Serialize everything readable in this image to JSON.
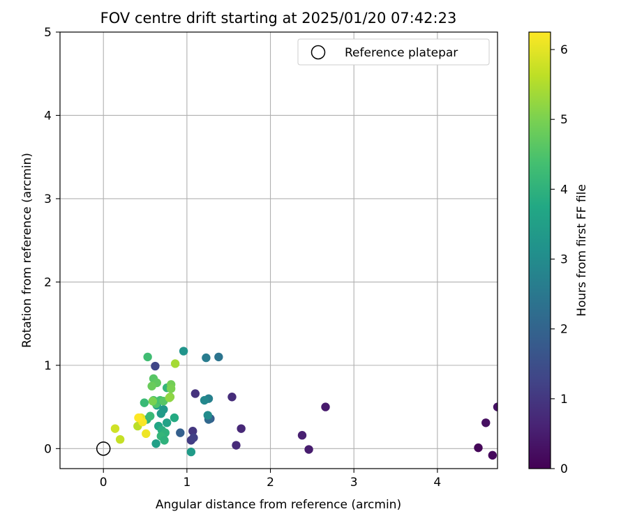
{
  "chart_data": {
    "type": "scatter",
    "title": "FOV centre drift starting at 2025/01/20 07:42:23",
    "xlabel": "Angular distance from reference (arcmin)",
    "ylabel": "Rotation from reference (arcmin)",
    "xlim": [
      -0.52,
      4.72
    ],
    "ylim": [
      -0.24,
      5.0
    ],
    "xticks": [
      0,
      1,
      2,
      3,
      4
    ],
    "yticks": [
      0,
      1,
      2,
      3,
      4,
      5
    ],
    "grid": true,
    "legend": {
      "position": "top-right",
      "entries": [
        {
          "label": "Reference platepar",
          "marker": "open-circle"
        }
      ]
    },
    "reference_point": {
      "x": 0,
      "y": 0
    },
    "colorbar": {
      "label": "Hours from first FF file",
      "min": 0,
      "max": 6.25,
      "ticks": [
        0,
        1,
        2,
        3,
        4,
        5,
        6
      ],
      "colormap": "viridis"
    },
    "points": [
      {
        "x": 4.49,
        "y": 0.01,
        "hours": 0.1
      },
      {
        "x": 4.58,
        "y": 0.31,
        "hours": 0.25
      },
      {
        "x": 4.66,
        "y": -0.08,
        "hours": 0.15
      },
      {
        "x": 4.72,
        "y": 0.5,
        "hours": 0.3
      },
      {
        "x": 2.66,
        "y": 0.5,
        "hours": 0.45
      },
      {
        "x": 2.38,
        "y": 0.16,
        "hours": 0.55
      },
      {
        "x": 2.46,
        "y": -0.01,
        "hours": 0.5
      },
      {
        "x": 1.65,
        "y": 0.24,
        "hours": 0.7
      },
      {
        "x": 1.59,
        "y": 0.04,
        "hours": 0.75
      },
      {
        "x": 1.54,
        "y": 0.62,
        "hours": 0.8
      },
      {
        "x": 1.1,
        "y": 0.66,
        "hours": 0.9
      },
      {
        "x": 1.07,
        "y": 0.21,
        "hours": 1.0
      },
      {
        "x": 1.05,
        "y": 0.1,
        "hours": 1.1
      },
      {
        "x": 1.08,
        "y": 0.13,
        "hours": 1.2
      },
      {
        "x": 0.62,
        "y": 0.99,
        "hours": 1.3
      },
      {
        "x": 1.28,
        "y": 0.36,
        "hours": 1.8
      },
      {
        "x": 1.26,
        "y": 0.35,
        "hours": 2.1
      },
      {
        "x": 0.92,
        "y": 0.19,
        "hours": 1.9
      },
      {
        "x": 1.38,
        "y": 1.1,
        "hours": 2.4
      },
      {
        "x": 1.23,
        "y": 1.09,
        "hours": 2.6
      },
      {
        "x": 1.26,
        "y": 0.6,
        "hours": 2.7
      },
      {
        "x": 1.21,
        "y": 0.58,
        "hours": 2.9
      },
      {
        "x": 1.25,
        "y": 0.4,
        "hours": 3.0
      },
      {
        "x": 0.96,
        "y": 1.17,
        "hours": 3.2
      },
      {
        "x": 1.05,
        "y": -0.04,
        "hours": 3.4
      },
      {
        "x": 0.63,
        "y": 0.06,
        "hours": 3.5
      },
      {
        "x": 0.72,
        "y": 0.47,
        "hours": 3.3
      },
      {
        "x": 0.69,
        "y": 0.42,
        "hours": 3.4
      },
      {
        "x": 0.64,
        "y": 0.52,
        "hours": 3.6
      },
      {
        "x": 0.66,
        "y": 0.27,
        "hours": 3.7
      },
      {
        "x": 0.85,
        "y": 0.37,
        "hours": 3.8
      },
      {
        "x": 0.76,
        "y": 0.31,
        "hours": 3.6
      },
      {
        "x": 0.7,
        "y": 0.22,
        "hours": 3.9
      },
      {
        "x": 0.74,
        "y": 0.19,
        "hours": 4.0
      },
      {
        "x": 0.69,
        "y": 0.15,
        "hours": 4.1
      },
      {
        "x": 0.73,
        "y": 0.1,
        "hours": 4.0
      },
      {
        "x": 0.76,
        "y": 0.73,
        "hours": 4.1
      },
      {
        "x": 0.52,
        "y": 0.35,
        "hours": 4.0
      },
      {
        "x": 0.56,
        "y": 0.39,
        "hours": 4.2
      },
      {
        "x": 0.53,
        "y": 1.1,
        "hours": 4.3
      },
      {
        "x": 0.49,
        "y": 0.55,
        "hours": 4.2
      },
      {
        "x": 0.6,
        "y": 0.58,
        "hours": 4.4
      },
      {
        "x": 0.63,
        "y": 0.54,
        "hours": 4.5
      },
      {
        "x": 0.68,
        "y": 0.58,
        "hours": 4.4
      },
      {
        "x": 0.72,
        "y": 0.57,
        "hours": 4.6
      },
      {
        "x": 0.6,
        "y": 0.84,
        "hours": 4.6
      },
      {
        "x": 0.64,
        "y": 0.79,
        "hours": 4.7
      },
      {
        "x": 0.58,
        "y": 0.75,
        "hours": 4.8
      },
      {
        "x": 0.81,
        "y": 0.77,
        "hours": 4.9
      },
      {
        "x": 0.81,
        "y": 0.72,
        "hours": 5.0
      },
      {
        "x": 0.8,
        "y": 0.62,
        "hours": 5.1
      },
      {
        "x": 0.79,
        "y": 0.61,
        "hours": 5.2
      },
      {
        "x": 0.86,
        "y": 1.02,
        "hours": 5.4
      },
      {
        "x": 0.59,
        "y": 0.57,
        "hours": 5.0
      },
      {
        "x": 0.41,
        "y": 0.27,
        "hours": 5.6
      },
      {
        "x": 0.2,
        "y": 0.11,
        "hours": 5.7
      },
      {
        "x": 0.14,
        "y": 0.24,
        "hours": 5.8
      },
      {
        "x": 0.45,
        "y": 0.37,
        "hours": 6.0
      },
      {
        "x": 0.51,
        "y": 0.18,
        "hours": 6.1
      },
      {
        "x": 0.47,
        "y": 0.32,
        "hours": 6.2
      },
      {
        "x": 0.42,
        "y": 0.37,
        "hours": 6.25
      }
    ]
  }
}
